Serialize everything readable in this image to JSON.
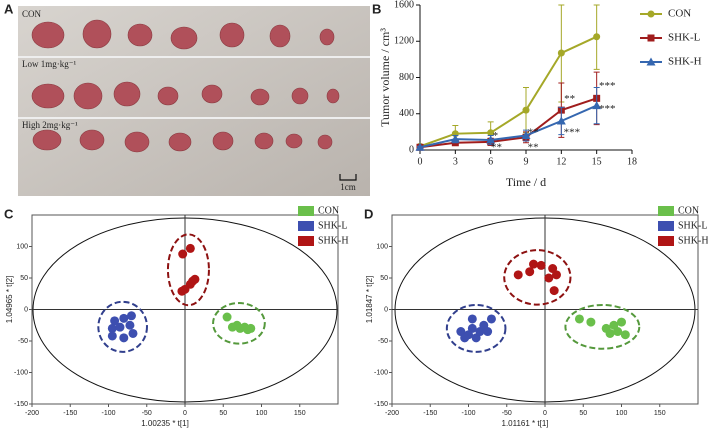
{
  "photo": {
    "label": "A",
    "rows": [
      "CON",
      "Low 1mg·kg⁻¹",
      "High 2mg·kg⁻¹"
    ],
    "scale": "1cm"
  },
  "chart_data": [
    {
      "type": "line",
      "panel": "B",
      "xlabel": "Time / d",
      "ylabel": "Tumor volume / cm³",
      "x": [
        0,
        3,
        6,
        9,
        12,
        15
      ],
      "xlim": [
        0,
        18
      ],
      "xticks": [
        0,
        3,
        6,
        9,
        12,
        15,
        18
      ],
      "ylim": [
        0,
        1600
      ],
      "yticks": [
        0,
        400,
        800,
        1200,
        1600
      ],
      "series": [
        {
          "name": "CON",
          "color": "#a5a828",
          "marker": "circle",
          "values": [
            40,
            180,
            190,
            440,
            1070,
            1250
          ],
          "errors": [
            15,
            90,
            120,
            250,
            540,
            360
          ]
        },
        {
          "name": "SHK-L",
          "color": "#a01d1d",
          "marker": "square",
          "values": [
            30,
            80,
            90,
            140,
            440,
            570
          ],
          "errors": [
            10,
            30,
            40,
            60,
            300,
            290
          ]
        },
        {
          "name": "SHK-H",
          "color": "#3567b0",
          "marker": "triangle",
          "values": [
            30,
            120,
            110,
            160,
            320,
            490
          ],
          "errors": [
            10,
            40,
            50,
            60,
            150,
            200
          ]
        }
      ],
      "annotations": [
        {
          "text": "*",
          "x": 6.4,
          "y": 150
        },
        {
          "text": "**",
          "x": 6.5,
          "y": 25
        },
        {
          "text": "**",
          "x": 9.6,
          "y": 190
        },
        {
          "text": "**",
          "x": 9.6,
          "y": 25
        },
        {
          "text": "**",
          "x": 12.7,
          "y": 560
        },
        {
          "text": "***",
          "x": 12.9,
          "y": 190
        },
        {
          "text": "***",
          "x": 15.9,
          "y": 700
        },
        {
          "text": "***",
          "x": 15.9,
          "y": 450
        }
      ]
    },
    {
      "type": "scatter",
      "panel": "C",
      "xlabel": "1.00235 * t[1]",
      "ylabel": "1.04965 * t[2]",
      "xlim": [
        -200,
        200
      ],
      "xticks": [
        -200,
        -150,
        -100,
        -50,
        0,
        50,
        100,
        150
      ],
      "ylim": [
        -150,
        150
      ],
      "yticks": [
        -150,
        -100,
        -50,
        0,
        50,
        100
      ],
      "series": [
        {
          "name": "CON",
          "color": "#6abf4b",
          "x": [
            55,
            68,
            72,
            78,
            82,
            86,
            62
          ],
          "y": [
            -12,
            -25,
            -30,
            -28,
            -32,
            -30,
            -28
          ]
        },
        {
          "name": "SHK-L",
          "color": "#3d4fb0",
          "x": [
            -92,
            -80,
            -70,
            -95,
            -85,
            -72,
            -95,
            -80,
            -68
          ],
          "y": [
            -18,
            -14,
            -10,
            -30,
            -28,
            -25,
            -42,
            -45,
            -38
          ]
        },
        {
          "name": "SHK-H",
          "color": "#b01515",
          "x": [
            -3,
            7,
            13,
            7,
            0,
            -4,
            10
          ],
          "y": [
            88,
            97,
            48,
            40,
            32,
            29,
            45
          ]
        }
      ]
    },
    {
      "type": "scatter",
      "panel": "D",
      "xlabel": "1.01161 * t[1]",
      "ylabel": "1.01847 * t[2]",
      "xlim": [
        -200,
        200
      ],
      "xticks": [
        -200,
        -150,
        -100,
        -50,
        0,
        50,
        100,
        150
      ],
      "ylim": [
        -150,
        150
      ],
      "yticks": [
        -150,
        -100,
        -50,
        0,
        50,
        100
      ],
      "series": [
        {
          "name": "CON",
          "color": "#6abf4b",
          "x": [
            45,
            60,
            80,
            90,
            95,
            100,
            105,
            85
          ],
          "y": [
            -15,
            -20,
            -30,
            -25,
            -35,
            -20,
            -40,
            -38
          ]
        },
        {
          "name": "SHK-L",
          "color": "#3d4fb0",
          "x": [
            -110,
            -100,
            -95,
            -90,
            -85,
            -80,
            -75,
            -70,
            -95,
            -105
          ],
          "y": [
            -35,
            -40,
            -30,
            -45,
            -35,
            -25,
            -35,
            -15,
            -15,
            -45
          ]
        },
        {
          "name": "SHK-H",
          "color": "#b01515",
          "x": [
            -35,
            -20,
            -5,
            5,
            10,
            15,
            12,
            -15
          ],
          "y": [
            55,
            60,
            70,
            50,
            65,
            55,
            30,
            72
          ]
        }
      ]
    }
  ]
}
